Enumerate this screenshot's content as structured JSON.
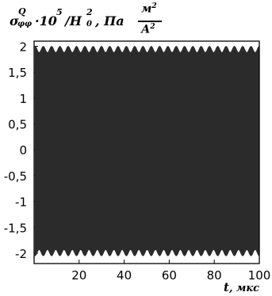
{
  "chart_data": {
    "type": "line",
    "ylabel": {
      "sigma": "σ",
      "sigma_sup": "Q",
      "sigma_sub": "φφ",
      "mult": "·10",
      "mult_sup": "5",
      "slash": "/H",
      "h_sup": "2",
      "h_sub": "0",
      "comma_unit": ", Па",
      "num": "м",
      "num_sup": "2",
      "den": "А",
      "den_sup": "2"
    },
    "xlabel": {
      "var": "t",
      "unit": ", мкс"
    },
    "xlim": [
      0,
      100
    ],
    "ylim": [
      -2.2,
      2.1
    ],
    "xticks": [
      20,
      40,
      60,
      80,
      100
    ],
    "yticks": [
      {
        "value": 2,
        "label": "2"
      },
      {
        "value": 1.5,
        "label": "1,5"
      },
      {
        "value": 1,
        "label": "1"
      },
      {
        "value": 0.5,
        "label": "0,5"
      },
      {
        "value": 0,
        "label": "0"
      },
      {
        "value": -0.5,
        "label": "-0,5"
      },
      {
        "value": -1,
        "label": "-1"
      },
      {
        "value": -1.5,
        "label": "-1,5"
      },
      {
        "value": -2,
        "label": "-2"
      }
    ],
    "series": [
      {
        "x_start": 0.4,
        "x_end": 100,
        "envelope_max": 2.0,
        "envelope_min": -2.05,
        "ripple_depth": 0.12,
        "ripple_count": 27,
        "color": "#2b2b2b"
      }
    ]
  }
}
